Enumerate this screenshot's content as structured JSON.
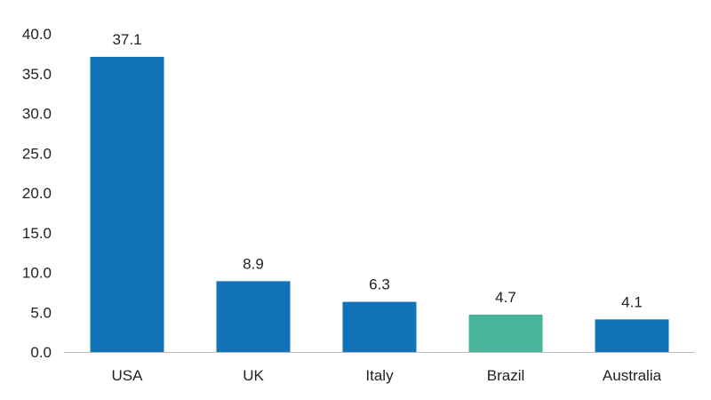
{
  "chart_data": {
    "type": "bar",
    "categories": [
      "USA",
      "UK",
      "Italy",
      "Brazil",
      "Australia"
    ],
    "values": [
      37.1,
      8.9,
      6.3,
      4.7,
      4.1
    ],
    "value_labels": [
      "37.1",
      "8.9",
      "6.3",
      "4.7",
      "4.1"
    ],
    "bar_colors": [
      "#1273b8",
      "#1273b8",
      "#1273b8",
      "#48b49c",
      "#1273b8"
    ],
    "ylim": [
      0,
      40
    ],
    "yticks": [
      0,
      5,
      10,
      15,
      20,
      25,
      30,
      35,
      40
    ],
    "ytick_labels": [
      "0.0",
      "5.0",
      "10.0",
      "15.0",
      "20.0",
      "25.0",
      "30.0",
      "35.0",
      "40.0"
    ],
    "title": "",
    "xlabel": "",
    "ylabel": "",
    "grid": false,
    "legend": false
  }
}
